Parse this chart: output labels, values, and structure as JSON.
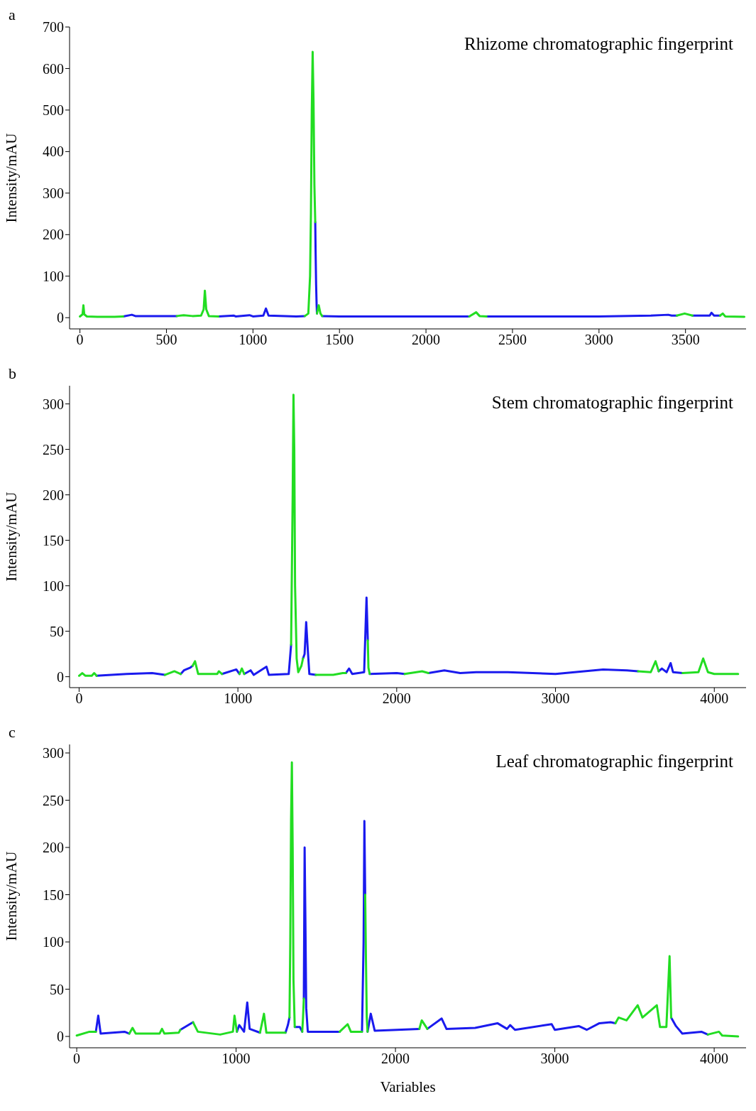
{
  "chart_data": [
    {
      "type": "line",
      "title": "Rhizome chromatographic fingerprint",
      "ylabel": "Intensity/mAU",
      "annotations": [
        "a"
      ],
      "xlim": [
        -60,
        3850
      ],
      "xticks": [
        0,
        500,
        1000,
        1500,
        2000,
        2500,
        3000,
        3500
      ],
      "ylim": [
        -27,
        700
      ],
      "yticks": [
        0,
        100,
        200,
        300,
        400,
        500,
        600,
        700
      ],
      "marker": "none",
      "line_style": "solid",
      "series": [
        {
          "color": "#22dd22",
          "x": [
            0,
            15,
            20,
            25,
            40,
            100,
            200,
            250,
            251,
            560,
            600,
            650,
            700,
            715,
            722,
            730,
            745,
            800,
            801,
            1300,
            1320,
            1330,
            1335,
            1340,
            1345,
            1350,
            1355,
            1360,
            1361,
            1370,
            1380,
            1390,
            1400,
            1401,
            2250,
            2290,
            2310,
            2350,
            2351,
            3450,
            3495,
            3540,
            3541,
            3700,
            3715,
            3730,
            3840
          ],
          "values": [
            3,
            8,
            30,
            8,
            3,
            2,
            2,
            3,
            null,
            4,
            6,
            4,
            5,
            20,
            65,
            20,
            4,
            3,
            null,
            4,
            10,
            100,
            250,
            500,
            640,
            520,
            320,
            230,
            null,
            10,
            30,
            10,
            4,
            null,
            3,
            13,
            4,
            3,
            null,
            5,
            10,
            5,
            null,
            5,
            10,
            3,
            2
          ]
        },
        {
          "color": "#1a1aee",
          "x": [
            250,
            300,
            320,
            500,
            560,
            561,
            800,
            890,
            900,
            980,
            1000,
            1060,
            1075,
            1090,
            1250,
            1300,
            1301,
            1360,
            1362,
            1365,
            1368,
            1370,
            1371,
            1400,
            1500,
            2000,
            2250,
            2251,
            2350,
            3000,
            3300,
            3400,
            3420,
            3450,
            3451,
            3540,
            3640,
            3650,
            3665,
            3700
          ],
          "values": [
            3,
            7,
            4,
            4,
            4,
            null,
            3,
            5,
            3,
            6,
            3,
            5,
            22,
            5,
            3,
            4,
            null,
            230,
            160,
            80,
            30,
            10,
            null,
            4,
            3,
            3,
            3,
            null,
            3,
            3,
            5,
            7,
            5,
            5,
            null,
            5,
            5,
            12,
            5,
            5
          ]
        }
      ]
    },
    {
      "type": "line",
      "title": "Stem chromatographic fingerprint",
      "ylabel": "Intensity/mAU",
      "annotations": [
        "b"
      ],
      "xlim": [
        -60,
        4200
      ],
      "xticks": [
        0,
        1000,
        2000,
        3000,
        4000
      ],
      "ylim": [
        -12,
        320
      ],
      "yticks": [
        0,
        50,
        100,
        150,
        200,
        250,
        300
      ],
      "marker": "none",
      "line_style": "solid",
      "series": [
        {
          "color": "#22dd22",
          "x": [
            0,
            20,
            40,
            80,
            95,
            110,
            111,
            540,
            600,
            640,
            641,
            715,
            730,
            750,
            870,
            880,
            900,
            901,
            1010,
            1025,
            1040,
            1041,
            1335,
            1345,
            1350,
            1355,
            1360,
            1370,
            1380,
            1400,
            1410,
            1411,
            1490,
            1600,
            1660,
            1680,
            1681,
            1818,
            1822,
            1830,
            1831,
            2050,
            2160,
            2200,
            2201,
            3520,
            3600,
            3630,
            3650,
            3651,
            3800,
            3900,
            3930,
            3960,
            4000,
            4150
          ],
          "values": [
            1,
            4,
            1,
            1,
            4,
            1,
            null,
            2,
            6,
            3,
            null,
            12,
            17,
            3,
            3,
            6,
            3,
            null,
            3,
            9,
            3,
            null,
            35,
            200,
            310,
            250,
            100,
            20,
            5,
            12,
            20,
            null,
            2,
            2,
            4,
            4,
            null,
            40,
            10,
            3,
            null,
            3,
            6,
            4,
            null,
            6,
            5,
            17,
            6,
            null,
            4,
            5,
            20,
            5,
            3,
            3
          ]
        },
        {
          "color": "#1a1aee",
          "x": [
            110,
            300,
            460,
            540,
            541,
            640,
            660,
            700,
            715,
            716,
            900,
            990,
            1010,
            1011,
            1040,
            1080,
            1100,
            1180,
            1195,
            1320,
            1335,
            1336,
            1410,
            1420,
            1430,
            1440,
            1450,
            1490,
            1491,
            1680,
            1700,
            1720,
            1795,
            1805,
            1810,
            1818,
            1819,
            1830,
            2000,
            2050,
            2051,
            2200,
            2300,
            2400,
            2500,
            2700,
            3000,
            3300,
            3450,
            3520,
            3521,
            3650,
            3670,
            3700,
            3725,
            3740,
            3800
          ],
          "values": [
            1,
            3,
            4,
            2,
            null,
            3,
            7,
            10,
            12,
            null,
            3,
            8,
            3,
            null,
            3,
            7,
            2,
            11,
            2,
            3,
            35,
            null,
            20,
            25,
            60,
            30,
            3,
            2,
            null,
            4,
            9,
            3,
            5,
            60,
            87,
            40,
            null,
            3,
            4,
            3,
            null,
            4,
            7,
            4,
            5,
            5,
            3,
            8,
            7,
            6,
            null,
            6,
            9,
            5,
            15,
            5,
            4
          ]
        }
      ]
    },
    {
      "type": "line",
      "title": "Leaf chromatographic fingerprint",
      "ylabel": "Intensity/mAU",
      "xlabel": "Variables",
      "annotations": [
        "c"
      ],
      "xlim": [
        -45,
        4200
      ],
      "xticks": [
        0,
        1000,
        2000,
        3000,
        4000
      ],
      "ylim": [
        -12,
        309
      ],
      "yticks": [
        0,
        50,
        100,
        150,
        200,
        250,
        300
      ],
      "marker": "none",
      "line_style": "solid",
      "series": [
        {
          "color": "#22dd22",
          "x": [
            0,
            80,
            120,
            121,
            330,
            350,
            370,
            520,
            535,
            550,
            640,
            650,
            651,
            730,
            760,
            900,
            980,
            990,
            1005,
            1006,
            1150,
            1175,
            1190,
            1310,
            1311,
            1335,
            1340,
            1345,
            1350,
            1355,
            1360,
            1368,
            1369,
            1415,
            1420,
            1425,
            1426,
            1650,
            1700,
            1720,
            1790,
            1791,
            1810,
            1815,
            1820,
            1825,
            1826,
            2150,
            2165,
            2200,
            2201,
            3380,
            3400,
            3450,
            3520,
            3550,
            3640,
            3660,
            3700,
            3720,
            3730,
            3731,
            3960,
            4030,
            4050,
            4150
          ],
          "values": [
            1,
            5,
            5,
            null,
            3,
            9,
            3,
            3,
            8,
            3,
            4,
            7,
            null,
            15,
            5,
            2,
            5,
            22,
            5,
            null,
            4,
            24,
            4,
            4,
            null,
            20,
            100,
            230,
            290,
            200,
            60,
            10,
            null,
            5,
            20,
            40,
            null,
            5,
            13,
            5,
            5,
            null,
            150,
            80,
            20,
            5,
            null,
            8,
            17,
            8,
            null,
            14,
            20,
            17,
            33,
            20,
            33,
            10,
            10,
            85,
            20,
            null,
            2,
            5,
            1,
            0
          ]
        },
        {
          "color": "#1a1aee",
          "x": [
            120,
            135,
            150,
            300,
            330,
            331,
            650,
            700,
            730,
            731,
            1005,
            1020,
            1050,
            1070,
            1085,
            1150,
            1151,
            1310,
            1325,
            1335,
            1336,
            1368,
            1400,
            1415,
            1416,
            1425,
            1430,
            1435,
            1440,
            1450,
            1650,
            1651,
            1790,
            1800,
            1805,
            1810,
            1811,
            1825,
            1845,
            1870,
            2150,
            2151,
            2200,
            2290,
            2320,
            2500,
            2640,
            2700,
            2720,
            2750,
            2980,
            3000,
            3150,
            3200,
            3280,
            3350,
            3380,
            3381,
            3730,
            3760,
            3800,
            3920,
            3960
          ],
          "values": [
            5,
            22,
            3,
            5,
            3,
            null,
            7,
            12,
            15,
            null,
            5,
            12,
            5,
            36,
            8,
            4,
            null,
            4,
            12,
            20,
            null,
            10,
            10,
            5,
            null,
            40,
            200,
            120,
            30,
            5,
            5,
            null,
            5,
            100,
            228,
            150,
            null,
            5,
            24,
            6,
            8,
            null,
            8,
            19,
            8,
            9,
            14,
            8,
            12,
            7,
            13,
            7,
            11,
            7,
            14,
            15,
            14,
            null,
            20,
            11,
            3,
            5,
            2
          ]
        }
      ]
    }
  ]
}
